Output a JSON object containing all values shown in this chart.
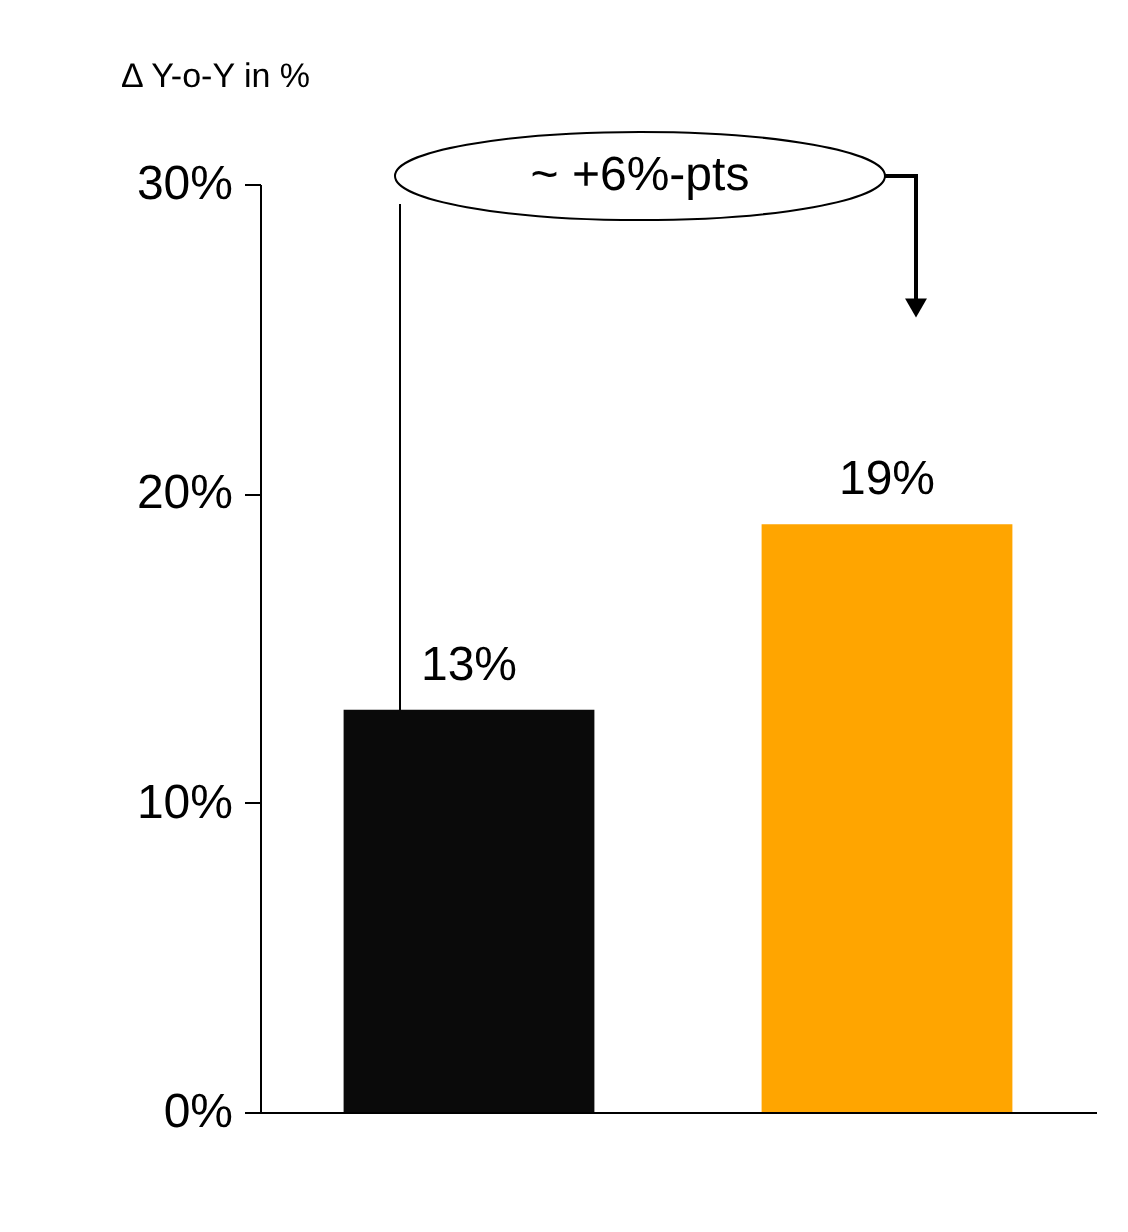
{
  "chart_data": {
    "type": "bar",
    "ylabel": "Δ Y-o-Y in %",
    "categories": [
      null,
      null
    ],
    "values": [
      13,
      19
    ],
    "colors": [
      "#0a0a0a",
      "#ffa500"
    ],
    "value_labels": [
      "13%",
      "19%"
    ],
    "ylim": [
      0,
      30
    ],
    "yticks": [
      {
        "value": 0,
        "label": "0%"
      },
      {
        "value": 10,
        "label": "10%"
      },
      {
        "value": 20,
        "label": "20%"
      },
      {
        "value": 30,
        "label": "30%"
      }
    ],
    "annotations": [
      "~ +6%-pts"
    ],
    "grid": false
  }
}
